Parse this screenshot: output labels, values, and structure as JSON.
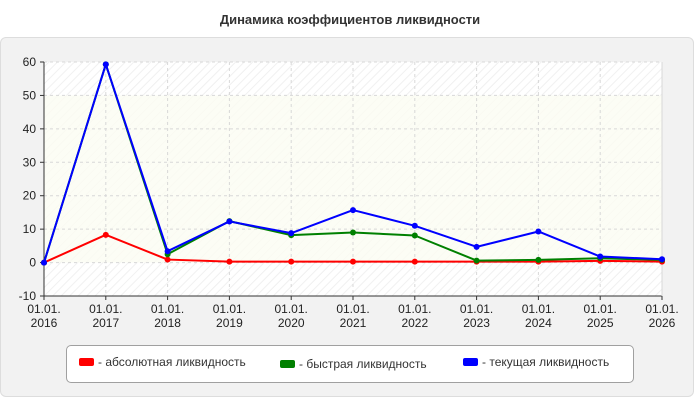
{
  "chart_data": {
    "type": "line",
    "title": "Динамика коэффициентов ликвидности",
    "xlabel": "",
    "ylabel": "",
    "categories": [
      "01.01.2016",
      "01.01.2017",
      "01.01.2018",
      "01.01.2019",
      "01.01.2020",
      "01.01.2021",
      "01.01.2022",
      "01.01.2023",
      "01.01.2024",
      "01.01.2025",
      "01.01.2026"
    ],
    "tick_labels": [
      [
        "01.01.",
        "2016"
      ],
      [
        "01.01.",
        "2017"
      ],
      [
        "01.01.",
        "2018"
      ],
      [
        "01.01.",
        "2019"
      ],
      [
        "01.01.",
        "2020"
      ],
      [
        "01.01.",
        "2021"
      ],
      [
        "01.01.",
        "2022"
      ],
      [
        "01.01.",
        "2023"
      ],
      [
        "01.01.",
        "2024"
      ],
      [
        "01.01.",
        "2025"
      ],
      [
        "01.01.",
        "2026"
      ]
    ],
    "ylim": [
      -10,
      60
    ],
    "yticks": [
      -10,
      0,
      10,
      20,
      30,
      40,
      50,
      60
    ],
    "grid": true,
    "legend_position": "bottom",
    "series": [
      {
        "name": "- абсолютная ликвидность",
        "color": "#ff0000",
        "values": [
          0,
          8.3,
          0.9,
          0.3,
          0.3,
          0.3,
          0.3,
          0.3,
          0.3,
          0.5,
          0.3
        ]
      },
      {
        "name": "- быстрая ликвидность",
        "color": "#008000",
        "values": [
          0,
          59.3,
          2.5,
          12.4,
          8.2,
          9.0,
          8.1,
          0.6,
          0.8,
          1.3,
          0.8
        ]
      },
      {
        "name": "- текущая ликвидность",
        "color": "#0000ff",
        "values": [
          0,
          59.3,
          3.4,
          12.3,
          8.8,
          15.7,
          11.0,
          4.7,
          9.3,
          1.8,
          1.0
        ]
      }
    ]
  }
}
